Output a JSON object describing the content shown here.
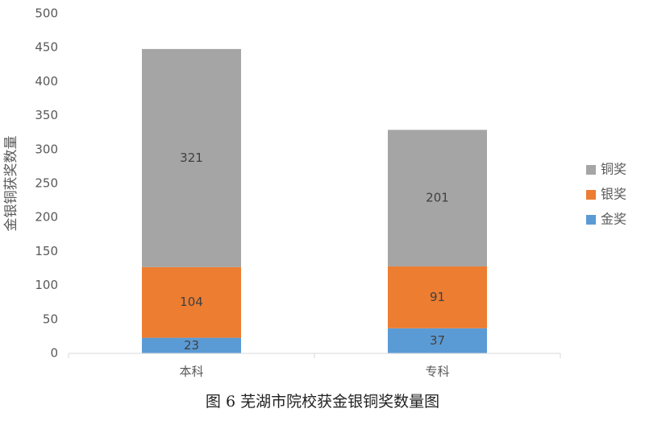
{
  "chart_data": {
    "type": "stacked_bar",
    "caption": "图 6 芜湖市院校获金银铜奖数量图",
    "y_label": "金银铜获奖数量",
    "categories": [
      "本科",
      "专科"
    ],
    "series": [
      {
        "name": "金奖",
        "color": "#5b9bd5",
        "values": [
          23,
          37
        ]
      },
      {
        "name": "银奖",
        "color": "#ed7d31",
        "values": [
          104,
          91
        ]
      },
      {
        "name": "铜奖",
        "color": "#a5a5a5",
        "values": [
          321,
          201
        ]
      }
    ],
    "ylim": [
      0,
      500
    ],
    "yticks": [
      0,
      50,
      100,
      150,
      200,
      250,
      300,
      350,
      400,
      450,
      500
    ],
    "legend": "right",
    "grid": false
  }
}
